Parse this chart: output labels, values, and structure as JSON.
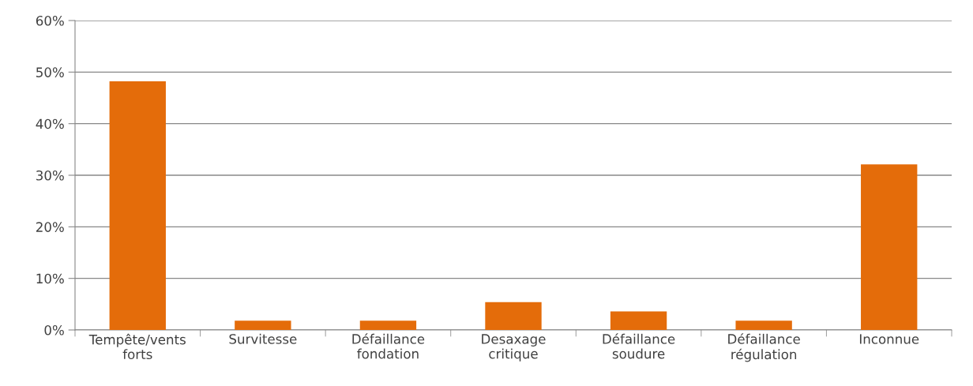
{
  "chart_data": {
    "type": "bar",
    "categories": [
      "Tempête/vents\nforts",
      "Survitesse",
      "Défaillance\nfondation",
      "Desaxage\ncritique",
      "Défaillance\nsoudure",
      "Défaillance\nrégulation",
      "Inconnue"
    ],
    "values": [
      48.2,
      1.8,
      1.8,
      5.4,
      3.6,
      1.8,
      32.1
    ],
    "color": "#e46c0a",
    "ylim": [
      0,
      60
    ],
    "yticks": [
      {
        "value": 0,
        "label": "0%"
      },
      {
        "value": 10,
        "label": "10%"
      },
      {
        "value": 20,
        "label": "20%"
      },
      {
        "value": 30,
        "label": "30%"
      },
      {
        "value": 40,
        "label": "40%"
      },
      {
        "value": 50,
        "label": "50%"
      },
      {
        "value": 60,
        "label": "60%"
      }
    ],
    "grid": "y"
  }
}
